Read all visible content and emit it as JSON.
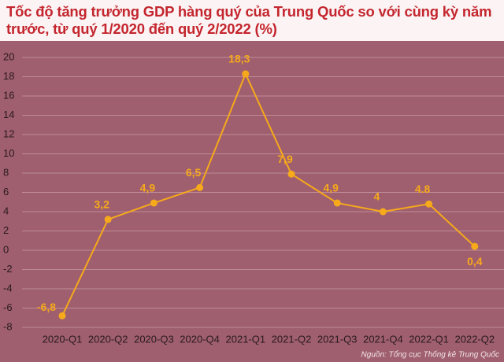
{
  "chart_data": {
    "type": "line",
    "title": "Tốc độ tăng trưởng GDP hàng quý của Trung Quốc so với cùng kỳ năm trước, từ quý 1/2020 đến quý 2/2022 (%)",
    "categories": [
      "2020-Q1",
      "2020-Q2",
      "2020-Q3",
      "2020-Q4",
      "2021-Q1",
      "2021-Q2",
      "2021-Q3",
      "2021-Q4",
      "2022-Q1",
      "2022-Q2"
    ],
    "values": [
      -6.8,
      3.2,
      4.9,
      6.5,
      18.3,
      7.9,
      4.9,
      4,
      4.8,
      0.4
    ],
    "value_labels": [
      "-6,8",
      "3,2",
      "4,9",
      "6,5",
      "18,3",
      "7,9",
      "4,9",
      "4",
      "4.8",
      "0,4"
    ],
    "color": "#f6a91b",
    "ylim": [
      -8,
      20
    ],
    "yticks": [
      -8,
      -6,
      -4,
      -2,
      0,
      2,
      4,
      6,
      8,
      10,
      12,
      14,
      16,
      18,
      20
    ],
    "grid": true,
    "source": "Nguồn: Tổng cục Thống kê Trung Quốc"
  }
}
